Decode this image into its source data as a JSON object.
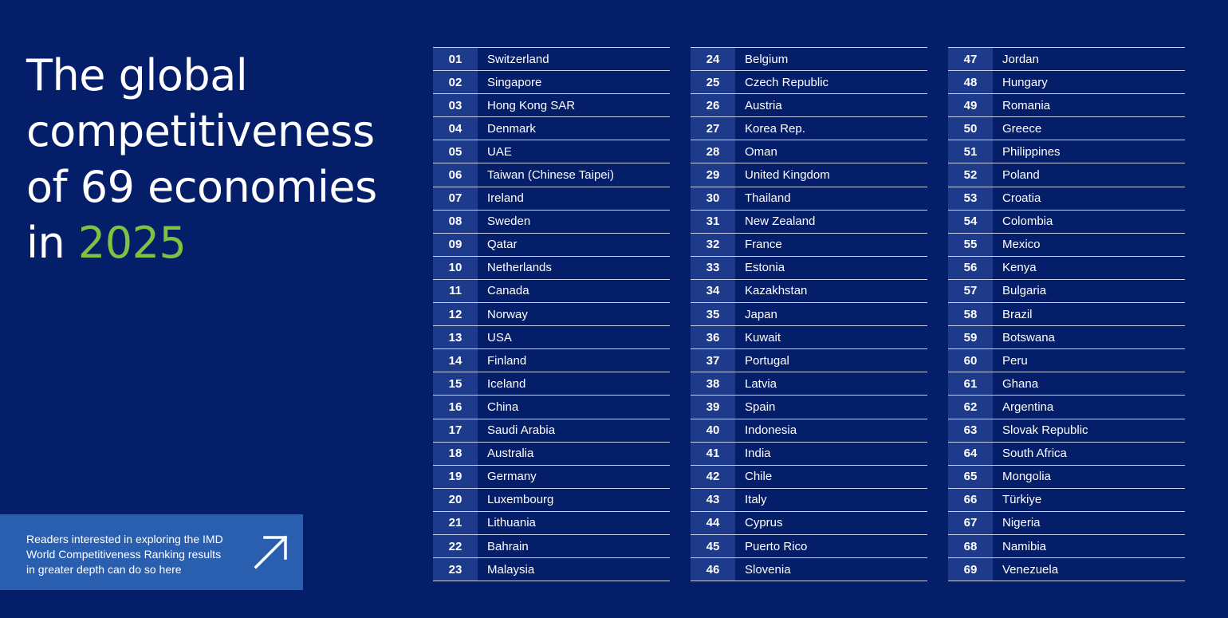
{
  "title": {
    "line1": "The global",
    "line2": "competitiveness",
    "line3": "of 69 economies",
    "line4_prefix": "in ",
    "year": "2025"
  },
  "colors": {
    "background": "#041e6a",
    "accent_green": "#7dc242",
    "cta_blue": "#2a5fb0",
    "rank_cell": "#1e3a8a"
  },
  "cta": {
    "line1": "Readers interested in exploring the IMD",
    "line2": "World Competitiveness Ranking results",
    "line3": "in greater depth can do so here",
    "icon": "arrow-up-right-icon"
  },
  "rankings": {
    "columns": [
      [
        {
          "rank": "01",
          "name": "Switzerland"
        },
        {
          "rank": "02",
          "name": "Singapore"
        },
        {
          "rank": "03",
          "name": "Hong Kong SAR"
        },
        {
          "rank": "04",
          "name": "Denmark"
        },
        {
          "rank": "05",
          "name": "UAE"
        },
        {
          "rank": "06",
          "name": "Taiwan (Chinese Taipei)"
        },
        {
          "rank": "07",
          "name": "Ireland"
        },
        {
          "rank": "08",
          "name": "Sweden"
        },
        {
          "rank": "09",
          "name": "Qatar"
        },
        {
          "rank": "10",
          "name": "Netherlands"
        },
        {
          "rank": "11",
          "name": "Canada"
        },
        {
          "rank": "12",
          "name": "Norway"
        },
        {
          "rank": "13",
          "name": "USA"
        },
        {
          "rank": "14",
          "name": "Finland"
        },
        {
          "rank": "15",
          "name": "Iceland"
        },
        {
          "rank": "16",
          "name": "China"
        },
        {
          "rank": "17",
          "name": "Saudi Arabia"
        },
        {
          "rank": "18",
          "name": "Australia"
        },
        {
          "rank": "19",
          "name": "Germany"
        },
        {
          "rank": "20",
          "name": "Luxembourg"
        },
        {
          "rank": "21",
          "name": "Lithuania"
        },
        {
          "rank": "22",
          "name": "Bahrain"
        },
        {
          "rank": "23",
          "name": "Malaysia"
        }
      ],
      [
        {
          "rank": "24",
          "name": "Belgium"
        },
        {
          "rank": "25",
          "name": "Czech Republic"
        },
        {
          "rank": "26",
          "name": "Austria"
        },
        {
          "rank": "27",
          "name": "Korea Rep."
        },
        {
          "rank": "28",
          "name": "Oman"
        },
        {
          "rank": "29",
          "name": "United Kingdom"
        },
        {
          "rank": "30",
          "name": "Thailand"
        },
        {
          "rank": "31",
          "name": "New Zealand"
        },
        {
          "rank": "32",
          "name": "France"
        },
        {
          "rank": "33",
          "name": "Estonia"
        },
        {
          "rank": "34",
          "name": "Kazakhstan"
        },
        {
          "rank": "35",
          "name": "Japan"
        },
        {
          "rank": "36",
          "name": "Kuwait"
        },
        {
          "rank": "37",
          "name": "Portugal"
        },
        {
          "rank": "38",
          "name": "Latvia"
        },
        {
          "rank": "39",
          "name": "Spain"
        },
        {
          "rank": "40",
          "name": "Indonesia"
        },
        {
          "rank": "41",
          "name": "India"
        },
        {
          "rank": "42",
          "name": "Chile"
        },
        {
          "rank": "43",
          "name": "Italy"
        },
        {
          "rank": "44",
          "name": "Cyprus"
        },
        {
          "rank": "45",
          "name": "Puerto Rico"
        },
        {
          "rank": "46",
          "name": "Slovenia"
        }
      ],
      [
        {
          "rank": "47",
          "name": "Jordan"
        },
        {
          "rank": "48",
          "name": "Hungary"
        },
        {
          "rank": "49",
          "name": "Romania"
        },
        {
          "rank": "50",
          "name": "Greece"
        },
        {
          "rank": "51",
          "name": "Philippines"
        },
        {
          "rank": "52",
          "name": "Poland"
        },
        {
          "rank": "53",
          "name": "Croatia"
        },
        {
          "rank": "54",
          "name": "Colombia"
        },
        {
          "rank": "55",
          "name": "Mexico"
        },
        {
          "rank": "56",
          "name": "Kenya"
        },
        {
          "rank": "57",
          "name": "Bulgaria"
        },
        {
          "rank": "58",
          "name": "Brazil"
        },
        {
          "rank": "59",
          "name": "Botswana"
        },
        {
          "rank": "60",
          "name": "Peru"
        },
        {
          "rank": "61",
          "name": "Ghana"
        },
        {
          "rank": "62",
          "name": "Argentina"
        },
        {
          "rank": "63",
          "name": "Slovak Republic"
        },
        {
          "rank": "64",
          "name": "South Africa"
        },
        {
          "rank": "65",
          "name": "Mongolia"
        },
        {
          "rank": "66",
          "name": "Türkiye"
        },
        {
          "rank": "67",
          "name": "Nigeria"
        },
        {
          "rank": "68",
          "name": "Namibia"
        },
        {
          "rank": "69",
          "name": "Venezuela"
        }
      ]
    ]
  }
}
